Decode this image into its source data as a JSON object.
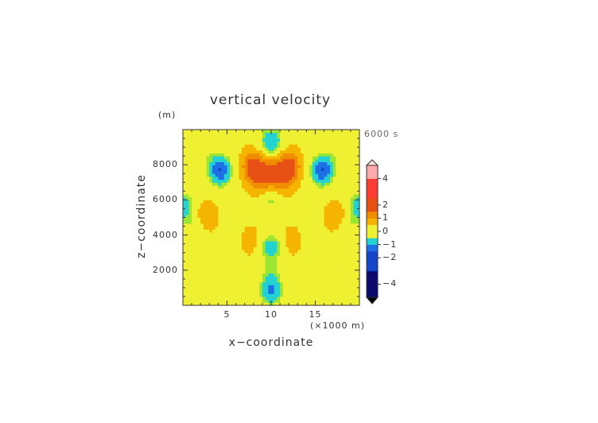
{
  "chart_data": {
    "type": "heatmap",
    "title": "vertical velocity",
    "z_unit": "(m)",
    "time_label": "6000 s",
    "xlabel": "x−coordinate",
    "x_multiplier": "(×1000 m)",
    "ylabel": "z−coordinate",
    "xlim": [
      0,
      20
    ],
    "ylim": [
      0,
      10000
    ],
    "x_ticks": [
      "5",
      "10",
      "15"
    ],
    "x_tick_values": [
      5,
      10,
      15
    ],
    "y_ticks": [
      "2000",
      "4000",
      "6000",
      "8000"
    ],
    "y_tick_values": [
      2000,
      4000,
      6000,
      8000
    ],
    "colorbar_ticks": [
      "4",
      "2",
      "1",
      "0",
      "−1",
      "−2",
      "−4"
    ],
    "colorbar_tick_values": [
      4,
      2,
      1,
      0,
      -1,
      -2,
      -4
    ],
    "colorbar_levels": [
      -5,
      -4.5,
      -4,
      -3.5,
      -3,
      -2.5,
      -2,
      -1.5,
      -1,
      -0.5,
      0,
      0.5,
      1,
      1.5,
      2,
      2.5,
      3,
      3.5,
      4,
      4.5,
      5
    ],
    "background_value": 0.2,
    "features": [
      {
        "x": 10.0,
        "z": 9300,
        "value": -1.2
      },
      {
        "x": 10.0,
        "z": 6000,
        "value": -0.7
      },
      {
        "x": 10.0,
        "z": 3400,
        "value": -0.9
      },
      {
        "x": 10.0,
        "z": 900,
        "value": -1.3
      },
      {
        "x": 10.0,
        "z": 4900,
        "value": 0.3
      },
      {
        "x": 10.0,
        "z": 2200,
        "value": -0.3
      },
      {
        "x": 10.0,
        "z": 7600,
        "value": 1.2
      },
      {
        "x": 8.0,
        "z": 7900,
        "value": 1.7
      },
      {
        "x": 12.0,
        "z": 7900,
        "value": 1.7
      },
      {
        "x": 8.8,
        "z": 7000,
        "value": 0.7
      },
      {
        "x": 11.2,
        "z": 7000,
        "value": 0.7
      },
      {
        "x": 4.2,
        "z": 7700,
        "value": -1.7
      },
      {
        "x": 15.8,
        "z": 7700,
        "value": -1.7
      },
      {
        "x": 2.2,
        "z": 8700,
        "value": -0.3
      },
      {
        "x": 17.8,
        "z": 8700,
        "value": -0.3
      },
      {
        "x": 0.0,
        "z": 5600,
        "value": -1.0
      },
      {
        "x": 20.0,
        "z": 5600,
        "value": -1.0
      },
      {
        "x": 1.2,
        "z": 4300,
        "value": -0.4
      },
      {
        "x": 18.8,
        "z": 4300,
        "value": -0.4
      },
      {
        "x": 1.5,
        "z": 1800,
        "value": -0.35
      },
      {
        "x": 18.5,
        "z": 1800,
        "value": -0.35
      },
      {
        "x": 6.3,
        "z": 3800,
        "value": -0.35
      },
      {
        "x": 13.7,
        "z": 3800,
        "value": -0.35
      },
      {
        "x": 5.8,
        "z": 2000,
        "value": -0.3
      },
      {
        "x": 14.2,
        "z": 2000,
        "value": -0.3
      },
      {
        "x": 2.7,
        "z": 5100,
        "value": 0.6
      },
      {
        "x": 17.3,
        "z": 5100,
        "value": 0.6
      },
      {
        "x": 7.3,
        "z": 3700,
        "value": 0.6
      },
      {
        "x": 12.7,
        "z": 3700,
        "value": 0.6
      }
    ],
    "colors": {
      "deep_negative": "#0a0a6e",
      "negative": "#1e6ee6",
      "light_negative": "#23d2d2",
      "near_zero_negative": "#9be632",
      "near_zero": "#f0f032",
      "positive": "#f5b400",
      "strong_positive": "#ff3c32",
      "very_strong_positive": "#ffaaaa"
    }
  }
}
